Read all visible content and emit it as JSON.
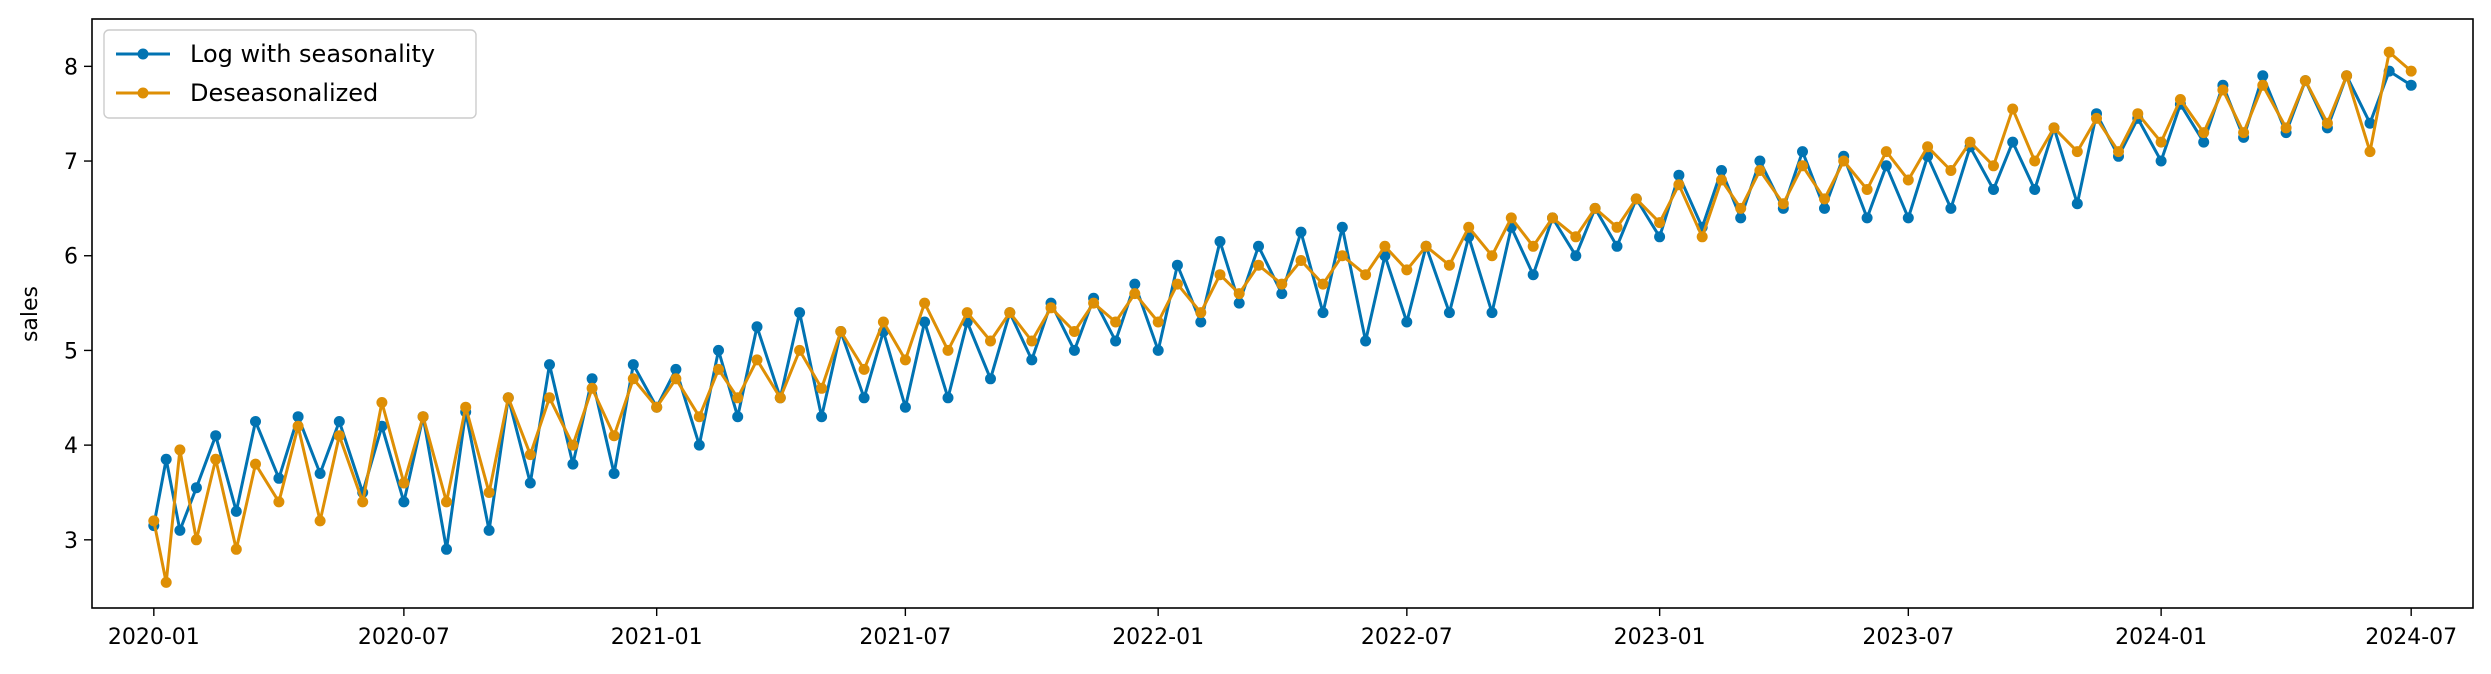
{
  "chart_data": {
    "type": "line",
    "title": "",
    "xlabel": "",
    "ylabel": "sales",
    "x_range": [
      "2020-01-01",
      "2024-07-01"
    ],
    "x_ticks": [
      "2020-01",
      "2020-07",
      "2021-01",
      "2021-07",
      "2022-01",
      "2022-07",
      "2023-01",
      "2023-07",
      "2024-01",
      "2024-07"
    ],
    "ylim": [
      2.28,
      8.5
    ],
    "y_ticks": [
      3,
      4,
      5,
      6,
      7,
      8
    ],
    "grid": false,
    "legend_position": "top-left",
    "markers": true,
    "series": [
      {
        "name": "Log with seasonality",
        "color": "#0173b2",
        "points": [
          [
            "2020-01-01",
            3.15
          ],
          [
            "2020-01-10",
            3.85
          ],
          [
            "2020-01-20",
            3.1
          ],
          [
            "2020-02-01",
            3.55
          ],
          [
            "2020-02-15",
            4.1
          ],
          [
            "2020-03-01",
            3.3
          ],
          [
            "2020-03-15",
            4.25
          ],
          [
            "2020-04-01",
            3.65
          ],
          [
            "2020-04-15",
            4.3
          ],
          [
            "2020-05-01",
            3.7
          ],
          [
            "2020-05-15",
            4.25
          ],
          [
            "2020-06-01",
            3.5
          ],
          [
            "2020-06-15",
            4.2
          ],
          [
            "2020-07-01",
            3.4
          ],
          [
            "2020-07-15",
            4.3
          ],
          [
            "2020-08-01",
            2.9
          ],
          [
            "2020-08-15",
            4.35
          ],
          [
            "2020-09-01",
            3.1
          ],
          [
            "2020-09-15",
            4.5
          ],
          [
            "2020-10-01",
            3.6
          ],
          [
            "2020-10-15",
            4.85
          ],
          [
            "2020-11-01",
            3.8
          ],
          [
            "2020-11-15",
            4.7
          ],
          [
            "2020-12-01",
            3.7
          ],
          [
            "2020-12-15",
            4.85
          ],
          [
            "2021-01-01",
            4.4
          ],
          [
            "2021-01-15",
            4.8
          ],
          [
            "2021-02-01",
            4.0
          ],
          [
            "2021-02-15",
            5.0
          ],
          [
            "2021-03-01",
            4.3
          ],
          [
            "2021-03-15",
            5.25
          ],
          [
            "2021-04-01",
            4.5
          ],
          [
            "2021-04-15",
            5.4
          ],
          [
            "2021-05-01",
            4.3
          ],
          [
            "2021-05-15",
            5.2
          ],
          [
            "2021-06-01",
            4.5
          ],
          [
            "2021-06-15",
            5.2
          ],
          [
            "2021-07-01",
            4.4
          ],
          [
            "2021-07-15",
            5.3
          ],
          [
            "2021-08-01",
            4.5
          ],
          [
            "2021-08-15",
            5.3
          ],
          [
            "2021-09-01",
            4.7
          ],
          [
            "2021-09-15",
            5.4
          ],
          [
            "2021-10-01",
            4.9
          ],
          [
            "2021-10-15",
            5.5
          ],
          [
            "2021-11-01",
            5.0
          ],
          [
            "2021-11-15",
            5.55
          ],
          [
            "2021-12-01",
            5.1
          ],
          [
            "2021-12-15",
            5.7
          ],
          [
            "2022-01-01",
            5.0
          ],
          [
            "2022-01-15",
            5.9
          ],
          [
            "2022-02-01",
            5.3
          ],
          [
            "2022-02-15",
            6.15
          ],
          [
            "2022-03-01",
            5.5
          ],
          [
            "2022-03-15",
            6.1
          ],
          [
            "2022-04-01",
            5.6
          ],
          [
            "2022-04-15",
            6.25
          ],
          [
            "2022-05-01",
            5.4
          ],
          [
            "2022-05-15",
            6.3
          ],
          [
            "2022-06-01",
            5.1
          ],
          [
            "2022-06-15",
            6.0
          ],
          [
            "2022-07-01",
            5.3
          ],
          [
            "2022-07-15",
            6.1
          ],
          [
            "2022-08-01",
            5.4
          ],
          [
            "2022-08-15",
            6.2
          ],
          [
            "2022-09-01",
            5.4
          ],
          [
            "2022-09-15",
            6.3
          ],
          [
            "2022-10-01",
            5.8
          ],
          [
            "2022-10-15",
            6.4
          ],
          [
            "2022-11-01",
            6.0
          ],
          [
            "2022-11-15",
            6.5
          ],
          [
            "2022-12-01",
            6.1
          ],
          [
            "2022-12-15",
            6.6
          ],
          [
            "2023-01-01",
            6.2
          ],
          [
            "2023-01-15",
            6.85
          ],
          [
            "2023-02-01",
            6.3
          ],
          [
            "2023-02-15",
            6.9
          ],
          [
            "2023-03-01",
            6.4
          ],
          [
            "2023-03-15",
            7.0
          ],
          [
            "2023-04-01",
            6.5
          ],
          [
            "2023-04-15",
            7.1
          ],
          [
            "2023-05-01",
            6.5
          ],
          [
            "2023-05-15",
            7.05
          ],
          [
            "2023-06-01",
            6.4
          ],
          [
            "2023-06-15",
            6.95
          ],
          [
            "2023-07-01",
            6.4
          ],
          [
            "2023-07-15",
            7.05
          ],
          [
            "2023-08-01",
            6.5
          ],
          [
            "2023-08-15",
            7.15
          ],
          [
            "2023-09-01",
            6.7
          ],
          [
            "2023-09-15",
            7.2
          ],
          [
            "2023-10-01",
            6.7
          ],
          [
            "2023-10-15",
            7.35
          ],
          [
            "2023-11-01",
            6.55
          ],
          [
            "2023-11-15",
            7.5
          ],
          [
            "2023-12-01",
            7.05
          ],
          [
            "2023-12-15",
            7.45
          ],
          [
            "2024-01-01",
            7.0
          ],
          [
            "2024-01-15",
            7.6
          ],
          [
            "2024-02-01",
            7.2
          ],
          [
            "2024-02-15",
            7.8
          ],
          [
            "2024-03-01",
            7.25
          ],
          [
            "2024-03-15",
            7.9
          ],
          [
            "2024-04-01",
            7.3
          ],
          [
            "2024-04-15",
            7.85
          ],
          [
            "2024-05-01",
            7.35
          ],
          [
            "2024-05-15",
            7.9
          ],
          [
            "2024-06-01",
            7.4
          ],
          [
            "2024-06-15",
            7.95
          ],
          [
            "2024-07-01",
            7.8
          ]
        ]
      },
      {
        "name": "Deseasonalized",
        "color": "#de8f05",
        "points": [
          [
            "2020-01-01",
            3.2
          ],
          [
            "2020-01-10",
            2.55
          ],
          [
            "2020-01-20",
            3.95
          ],
          [
            "2020-02-01",
            3.0
          ],
          [
            "2020-02-15",
            3.85
          ],
          [
            "2020-03-01",
            2.9
          ],
          [
            "2020-03-15",
            3.8
          ],
          [
            "2020-04-01",
            3.4
          ],
          [
            "2020-04-15",
            4.2
          ],
          [
            "2020-05-01",
            3.2
          ],
          [
            "2020-05-15",
            4.1
          ],
          [
            "2020-06-01",
            3.4
          ],
          [
            "2020-06-15",
            4.45
          ],
          [
            "2020-07-01",
            3.6
          ],
          [
            "2020-07-15",
            4.3
          ],
          [
            "2020-08-01",
            3.4
          ],
          [
            "2020-08-15",
            4.4
          ],
          [
            "2020-09-01",
            3.5
          ],
          [
            "2020-09-15",
            4.5
          ],
          [
            "2020-10-01",
            3.9
          ],
          [
            "2020-10-15",
            4.5
          ],
          [
            "2020-11-01",
            4.0
          ],
          [
            "2020-11-15",
            4.6
          ],
          [
            "2020-12-01",
            4.1
          ],
          [
            "2020-12-15",
            4.7
          ],
          [
            "2021-01-01",
            4.4
          ],
          [
            "2021-01-15",
            4.7
          ],
          [
            "2021-02-01",
            4.3
          ],
          [
            "2021-02-15",
            4.8
          ],
          [
            "2021-03-01",
            4.5
          ],
          [
            "2021-03-15",
            4.9
          ],
          [
            "2021-04-01",
            4.5
          ],
          [
            "2021-04-15",
            5.0
          ],
          [
            "2021-05-01",
            4.6
          ],
          [
            "2021-05-15",
            5.2
          ],
          [
            "2021-06-01",
            4.8
          ],
          [
            "2021-06-15",
            5.3
          ],
          [
            "2021-07-01",
            4.9
          ],
          [
            "2021-07-15",
            5.5
          ],
          [
            "2021-08-01",
            5.0
          ],
          [
            "2021-08-15",
            5.4
          ],
          [
            "2021-09-01",
            5.1
          ],
          [
            "2021-09-15",
            5.4
          ],
          [
            "2021-10-01",
            5.1
          ],
          [
            "2021-10-15",
            5.45
          ],
          [
            "2021-11-01",
            5.2
          ],
          [
            "2021-11-15",
            5.5
          ],
          [
            "2021-12-01",
            5.3
          ],
          [
            "2021-12-15",
            5.6
          ],
          [
            "2022-01-01",
            5.3
          ],
          [
            "2022-01-15",
            5.7
          ],
          [
            "2022-02-01",
            5.4
          ],
          [
            "2022-02-15",
            5.8
          ],
          [
            "2022-03-01",
            5.6
          ],
          [
            "2022-03-15",
            5.9
          ],
          [
            "2022-04-01",
            5.7
          ],
          [
            "2022-04-15",
            5.95
          ],
          [
            "2022-05-01",
            5.7
          ],
          [
            "2022-05-15",
            6.0
          ],
          [
            "2022-06-01",
            5.8
          ],
          [
            "2022-06-15",
            6.1
          ],
          [
            "2022-07-01",
            5.85
          ],
          [
            "2022-07-15",
            6.1
          ],
          [
            "2022-08-01",
            5.9
          ],
          [
            "2022-08-15",
            6.3
          ],
          [
            "2022-09-01",
            6.0
          ],
          [
            "2022-09-15",
            6.4
          ],
          [
            "2022-10-01",
            6.1
          ],
          [
            "2022-10-15",
            6.4
          ],
          [
            "2022-11-01",
            6.2
          ],
          [
            "2022-11-15",
            6.5
          ],
          [
            "2022-12-01",
            6.3
          ],
          [
            "2022-12-15",
            6.6
          ],
          [
            "2023-01-01",
            6.35
          ],
          [
            "2023-01-15",
            6.75
          ],
          [
            "2023-02-01",
            6.2
          ],
          [
            "2023-02-15",
            6.8
          ],
          [
            "2023-03-01",
            6.5
          ],
          [
            "2023-03-15",
            6.9
          ],
          [
            "2023-04-01",
            6.55
          ],
          [
            "2023-04-15",
            6.95
          ],
          [
            "2023-05-01",
            6.6
          ],
          [
            "2023-05-15",
            7.0
          ],
          [
            "2023-06-01",
            6.7
          ],
          [
            "2023-06-15",
            7.1
          ],
          [
            "2023-07-01",
            6.8
          ],
          [
            "2023-07-15",
            7.15
          ],
          [
            "2023-08-01",
            6.9
          ],
          [
            "2023-08-15",
            7.2
          ],
          [
            "2023-09-01",
            6.95
          ],
          [
            "2023-09-15",
            7.55
          ],
          [
            "2023-10-01",
            7.0
          ],
          [
            "2023-10-15",
            7.35
          ],
          [
            "2023-11-01",
            7.1
          ],
          [
            "2023-11-15",
            7.45
          ],
          [
            "2023-12-01",
            7.1
          ],
          [
            "2023-12-15",
            7.5
          ],
          [
            "2024-01-01",
            7.2
          ],
          [
            "2024-01-15",
            7.65
          ],
          [
            "2024-02-01",
            7.3
          ],
          [
            "2024-02-15",
            7.75
          ],
          [
            "2024-03-01",
            7.3
          ],
          [
            "2024-03-15",
            7.8
          ],
          [
            "2024-04-01",
            7.35
          ],
          [
            "2024-04-15",
            7.85
          ],
          [
            "2024-05-01",
            7.4
          ],
          [
            "2024-05-15",
            7.9
          ],
          [
            "2024-06-01",
            7.1
          ],
          [
            "2024-06-15",
            8.15
          ],
          [
            "2024-07-01",
            7.95
          ]
        ]
      }
    ]
  }
}
